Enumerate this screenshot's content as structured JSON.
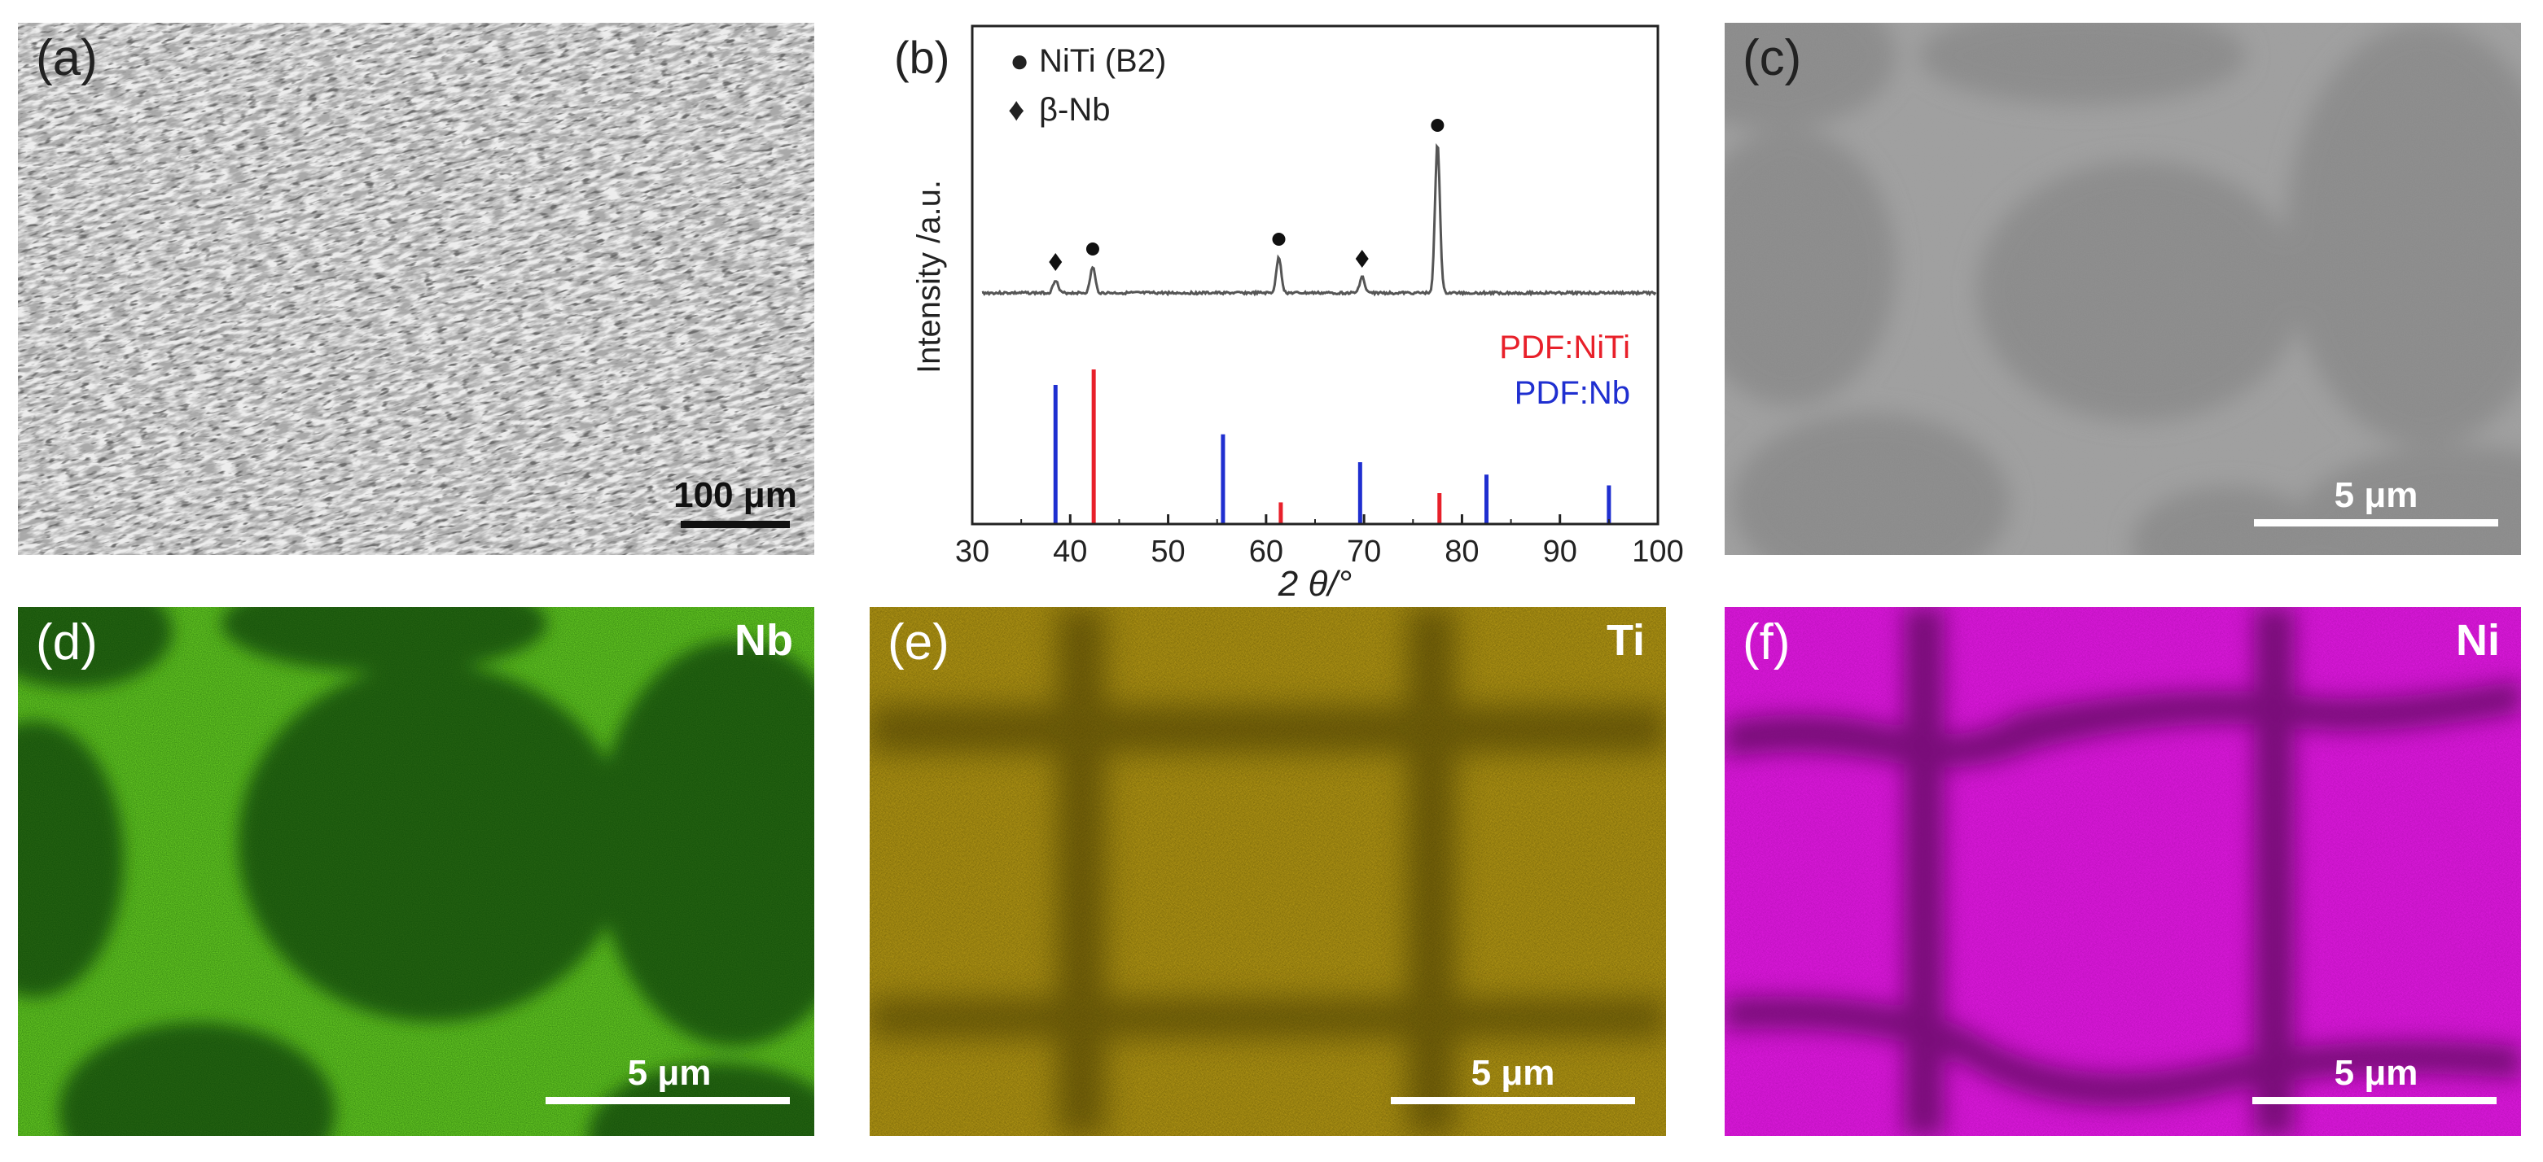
{
  "panels": {
    "a": {
      "label": "(a)",
      "scale_bar": "100 μm"
    },
    "b": {
      "label": "(b)"
    },
    "c": {
      "label": "(c)",
      "scale_bar": "5 μm"
    },
    "d": {
      "label": "(d)",
      "element": "Nb",
      "scale_bar": "5 μm"
    },
    "e": {
      "label": "(e)",
      "element": "Ti",
      "scale_bar": "5 μm"
    },
    "f": {
      "label": "(f)",
      "element": "Ni",
      "scale_bar": "5 μm"
    }
  },
  "colors": {
    "niti_ref": "#e8202a",
    "nb_ref": "#1f2fd0",
    "nb_map": "#7be52a",
    "ti_map": "#e3c21a",
    "ni_map": "#e81ce8",
    "trace": "#555555"
  },
  "chart_data": {
    "type": "line",
    "title": "",
    "xlabel": "2 θ/°",
    "ylabel": "Intensity /a.u.",
    "xlim": [
      30,
      100
    ],
    "xticks": [
      30,
      40,
      50,
      60,
      70,
      80,
      90,
      100
    ],
    "legend": [
      {
        "marker": "●",
        "name": "NiTi (B2)"
      },
      {
        "marker": "♦",
        "name": "β-Nb"
      }
    ],
    "series": [
      {
        "name": "XRD pattern",
        "peaks": [
          {
            "x": 38.5,
            "height": 0.08,
            "phase": "β-Nb"
          },
          {
            "x": 42.3,
            "height": 0.16,
            "phase": "NiTi (B2)"
          },
          {
            "x": 61.3,
            "height": 0.22,
            "phase": "NiTi (B2)"
          },
          {
            "x": 69.8,
            "height": 0.1,
            "phase": "β-Nb"
          },
          {
            "x": 77.5,
            "height": 0.92,
            "phase": "NiTi (B2)"
          }
        ]
      },
      {
        "name": "PDF:NiTi",
        "sticks": [
          {
            "x": 42.4,
            "height": 1.0
          },
          {
            "x": 61.5,
            "height": 0.14
          },
          {
            "x": 77.7,
            "height": 0.2
          }
        ]
      },
      {
        "name": "PDF:Nb",
        "sticks": [
          {
            "x": 38.5,
            "height": 0.9
          },
          {
            "x": 55.6,
            "height": 0.58
          },
          {
            "x": 69.6,
            "height": 0.4
          },
          {
            "x": 82.5,
            "height": 0.32
          },
          {
            "x": 95.0,
            "height": 0.25
          }
        ]
      }
    ]
  }
}
